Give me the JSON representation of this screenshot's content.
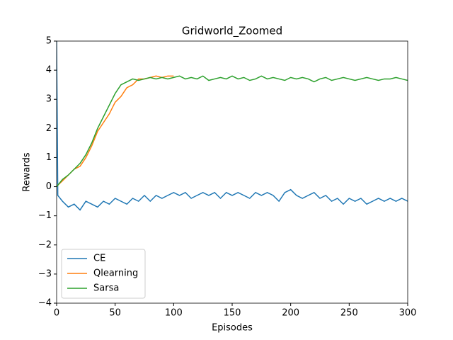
{
  "chart_data": {
    "type": "line",
    "title": "Gridworld_Zoomed",
    "xlabel": "Episodes",
    "ylabel": "Rewards",
    "x": [
      0,
      1,
      5,
      10,
      15,
      20,
      25,
      30,
      35,
      40,
      45,
      50,
      55,
      60,
      65,
      70,
      75,
      80,
      85,
      90,
      95,
      100,
      105,
      110,
      115,
      120,
      125,
      130,
      135,
      140,
      145,
      150,
      155,
      160,
      165,
      170,
      175,
      180,
      185,
      190,
      195,
      200,
      205,
      210,
      215,
      220,
      225,
      230,
      235,
      240,
      245,
      250,
      255,
      260,
      265,
      270,
      275,
      280,
      285,
      290,
      295,
      300
    ],
    "series": [
      {
        "name": "CE",
        "color": "#1f77b4",
        "values": [
          5,
          -0.3,
          -0.5,
          -0.7,
          -0.6,
          -0.8,
          -0.5,
          -0.6,
          -0.7,
          -0.5,
          -0.6,
          -0.4,
          -0.5,
          -0.6,
          -0.4,
          -0.5,
          -0.3,
          -0.5,
          -0.3,
          -0.4,
          -0.3,
          -0.2,
          -0.3,
          -0.2,
          -0.4,
          -0.3,
          -0.2,
          -0.3,
          -0.2,
          -0.4,
          -0.2,
          -0.3,
          -0.2,
          -0.3,
          -0.4,
          -0.2,
          -0.3,
          -0.2,
          -0.3,
          -0.5,
          -0.2,
          -0.1,
          -0.3,
          -0.4,
          -0.3,
          -0.2,
          -0.4,
          -0.3,
          -0.5,
          -0.4,
          -0.6,
          -0.4,
          -0.5,
          -0.4,
          -0.6,
          -0.5,
          -0.4,
          -0.5,
          -0.4,
          -0.5,
          -0.4,
          -0.5
        ]
      },
      {
        "name": "Qlearning",
        "color": "#ff7f0e",
        "values": [
          0,
          0.05,
          0.2,
          0.4,
          0.6,
          0.7,
          1.0,
          1.4,
          1.9,
          2.2,
          2.5,
          2.9,
          3.1,
          3.4,
          3.5,
          3.7,
          3.7,
          3.75,
          3.8,
          3.75,
          3.8,
          3.8,
          null,
          null,
          null,
          null,
          null,
          null,
          null,
          null,
          null,
          null,
          null,
          null,
          null,
          null,
          null,
          null,
          null,
          null,
          null,
          null,
          null,
          null,
          null,
          null,
          null,
          null,
          null,
          null,
          null,
          null,
          null,
          null,
          null,
          null,
          null,
          null,
          null,
          null,
          null,
          null
        ]
      },
      {
        "name": "Sarsa",
        "color": "#2ca02c",
        "values": [
          0,
          0.05,
          0.25,
          0.4,
          0.6,
          0.8,
          1.1,
          1.5,
          2.0,
          2.4,
          2.8,
          3.2,
          3.5,
          3.6,
          3.7,
          3.65,
          3.7,
          3.75,
          3.7,
          3.75,
          3.7,
          3.75,
          3.8,
          3.7,
          3.75,
          3.7,
          3.8,
          3.65,
          3.7,
          3.75,
          3.7,
          3.8,
          3.7,
          3.75,
          3.65,
          3.7,
          3.8,
          3.7,
          3.75,
          3.7,
          3.65,
          3.75,
          3.7,
          3.75,
          3.7,
          3.6,
          3.7,
          3.75,
          3.65,
          3.7,
          3.75,
          3.7,
          3.65,
          3.7,
          3.75,
          3.7,
          3.65,
          3.7,
          3.7,
          3.75,
          3.7,
          3.65
        ]
      }
    ],
    "xlim": [
      0,
      300
    ],
    "xticks": [
      0,
      50,
      100,
      150,
      200,
      250,
      300
    ],
    "ylim": [
      -4,
      5
    ],
    "yticks": [
      {
        "value": -4,
        "label": "−4"
      },
      {
        "value": -3,
        "label": "−3"
      },
      {
        "value": -2,
        "label": "−2"
      },
      {
        "value": -1,
        "label": "−1"
      },
      0,
      1,
      2,
      3,
      4,
      5
    ],
    "legend": "lower left"
  }
}
